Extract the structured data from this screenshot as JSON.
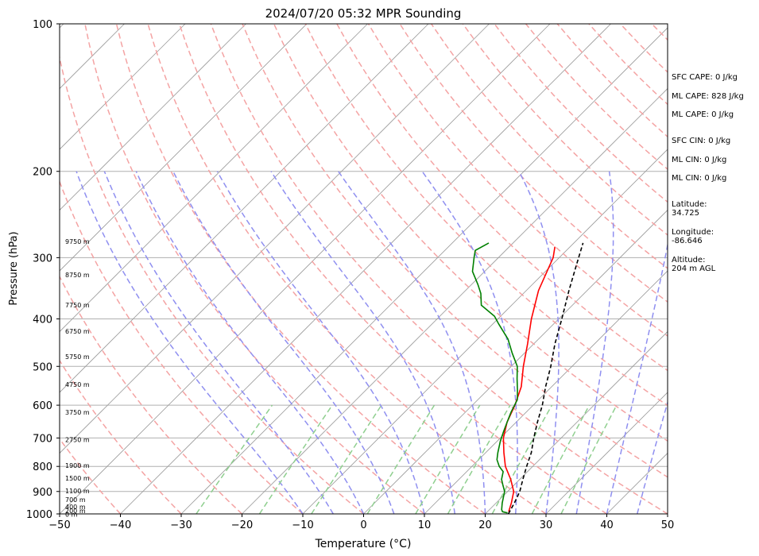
{
  "chart_data": {
    "type": "line",
    "title": "2024/07/20 05:32 MPR Sounding",
    "xlabel": "Temperature (°C)",
    "ylabel": "Pressure (hPa)",
    "xlim": [
      -50,
      50
    ],
    "ylim": [
      1000,
      100
    ],
    "y_scale": "log",
    "x_ticks": [
      "−50",
      "−40",
      "−30",
      "−20",
      "−10",
      "0",
      "10",
      "20",
      "30",
      "40",
      "50"
    ],
    "y_ticks": [
      1000,
      900,
      800,
      700,
      600,
      500,
      400,
      300,
      200,
      100
    ],
    "grid": true,
    "series": [
      {
        "color": "#ff0000",
        "points": [
          [
            23.5,
            990
          ],
          [
            22.5,
            950
          ],
          [
            21,
            900
          ],
          [
            18.5,
            850
          ],
          [
            15.5,
            800
          ],
          [
            13,
            750
          ],
          [
            10.5,
            700
          ],
          [
            8.5,
            650
          ],
          [
            7,
            600
          ],
          [
            5,
            550
          ],
          [
            2,
            500
          ],
          [
            -1,
            450
          ],
          [
            -4.5,
            400
          ],
          [
            -8,
            350
          ],
          [
            -11,
            300
          ],
          [
            -12.5,
            285
          ]
        ]
      },
      {
        "color": "#008000",
        "points": [
          [
            23.5,
            995
          ],
          [
            22.5,
            990
          ],
          [
            22,
            980
          ],
          [
            21,
            950
          ],
          [
            19.5,
            900
          ],
          [
            18,
            870
          ],
          [
            17,
            850
          ],
          [
            16,
            820
          ],
          [
            14.5,
            800
          ],
          [
            13,
            775
          ],
          [
            12,
            750
          ],
          [
            10.5,
            710
          ],
          [
            9.5,
            680
          ],
          [
            8.5,
            650
          ],
          [
            7.5,
            620
          ],
          [
            6.5,
            585
          ],
          [
            5,
            560
          ],
          [
            3,
            530
          ],
          [
            1,
            500
          ],
          [
            -2,
            470
          ],
          [
            -5,
            440
          ],
          [
            -9,
            410
          ],
          [
            -11,
            395
          ],
          [
            -15,
            375
          ],
          [
            -17,
            355
          ],
          [
            -19,
            340
          ],
          [
            -22,
            320
          ],
          [
            -24,
            300
          ],
          [
            -25,
            290
          ],
          [
            -24,
            280
          ]
        ]
      },
      {
        "color": "#000000",
        "style": "dashed",
        "points": [
          [
            23.8,
            1000
          ],
          [
            23,
            950
          ],
          [
            22,
            900
          ],
          [
            20.5,
            850
          ],
          [
            19,
            800
          ],
          [
            17.5,
            750
          ],
          [
            15.5,
            700
          ],
          [
            13.5,
            650
          ],
          [
            11.5,
            600
          ],
          [
            9,
            550
          ],
          [
            6.5,
            500
          ],
          [
            3.5,
            450
          ],
          [
            0.5,
            400
          ],
          [
            -3,
            350
          ],
          [
            -6,
            310
          ],
          [
            -8.5,
            280
          ]
        ]
      }
    ],
    "height_labels": [
      {
        "text": "9750 m",
        "p": 278
      },
      {
        "text": "8750 m",
        "p": 325
      },
      {
        "text": "7750 m",
        "p": 375
      },
      {
        "text": "6750 m",
        "p": 424
      },
      {
        "text": "5750 m",
        "p": 478
      },
      {
        "text": "4750 m",
        "p": 544
      },
      {
        "text": "3750 m",
        "p": 620
      },
      {
        "text": "2750 m",
        "p": 706
      },
      {
        "text": "1900 m",
        "p": 796
      },
      {
        "text": "1500 m",
        "p": 846
      },
      {
        "text": "1100 m",
        "p": 898
      },
      {
        "text": "700 m",
        "p": 935
      },
      {
        "text": "400 m",
        "p": 967
      },
      {
        "text": "200 m",
        "p": 985
      },
      {
        "text": "0 m",
        "p": 1001
      }
    ],
    "isotherm_temps": [
      -150,
      -140,
      -130,
      -120,
      -110,
      -100,
      -90,
      -80,
      -70,
      -60,
      -50,
      -40,
      -30,
      -20,
      -10,
      0,
      10,
      20,
      30,
      40,
      50
    ],
    "dry_adiabat_thetas_C": [
      -70,
      -60,
      -50,
      -40,
      -30,
      -20,
      -10,
      0,
      10,
      20,
      30,
      40,
      50,
      60,
      70,
      80,
      90,
      100,
      110,
      120,
      130,
      140,
      150,
      160,
      170,
      180,
      190,
      200
    ],
    "moist_adiabat_start_temps": [
      -10,
      -5,
      0,
      5,
      10,
      15,
      20,
      25,
      30,
      35,
      40,
      45
    ],
    "mixing_ratio_lines": [
      0.4,
      1,
      2,
      4,
      7,
      10,
      16,
      24,
      32
    ]
  },
  "info": {
    "sfc_cape": "SFC CAPE: 0 J/kg",
    "ml_cape_1": "ML CAPE: 828 J/kg",
    "ml_cape_2": "ML CAPE: 0 J/kg",
    "sfc_cin": "SFC CIN: 0 J/kg",
    "ml_cin_1": "ML CIN: 0 J/kg",
    "ml_cin_2": "ML CIN: 0 J/kg",
    "lat_label": "Latitude:",
    "lat_value": "34.725",
    "lon_label": "Longitude:",
    "lon_value": "-86.646",
    "alt_label": "Altitude:",
    "alt_value": "204 m AGL"
  },
  "colors": {
    "temperature": "#ff0000",
    "dewpoint": "#008000",
    "parcel": "#000000",
    "dry_adiabat": "#f4a3a3",
    "moist_adiabat": "#8f8ff0",
    "mixing_ratio": "#8fcf8f",
    "isotherm": "#9a9a9a"
  }
}
